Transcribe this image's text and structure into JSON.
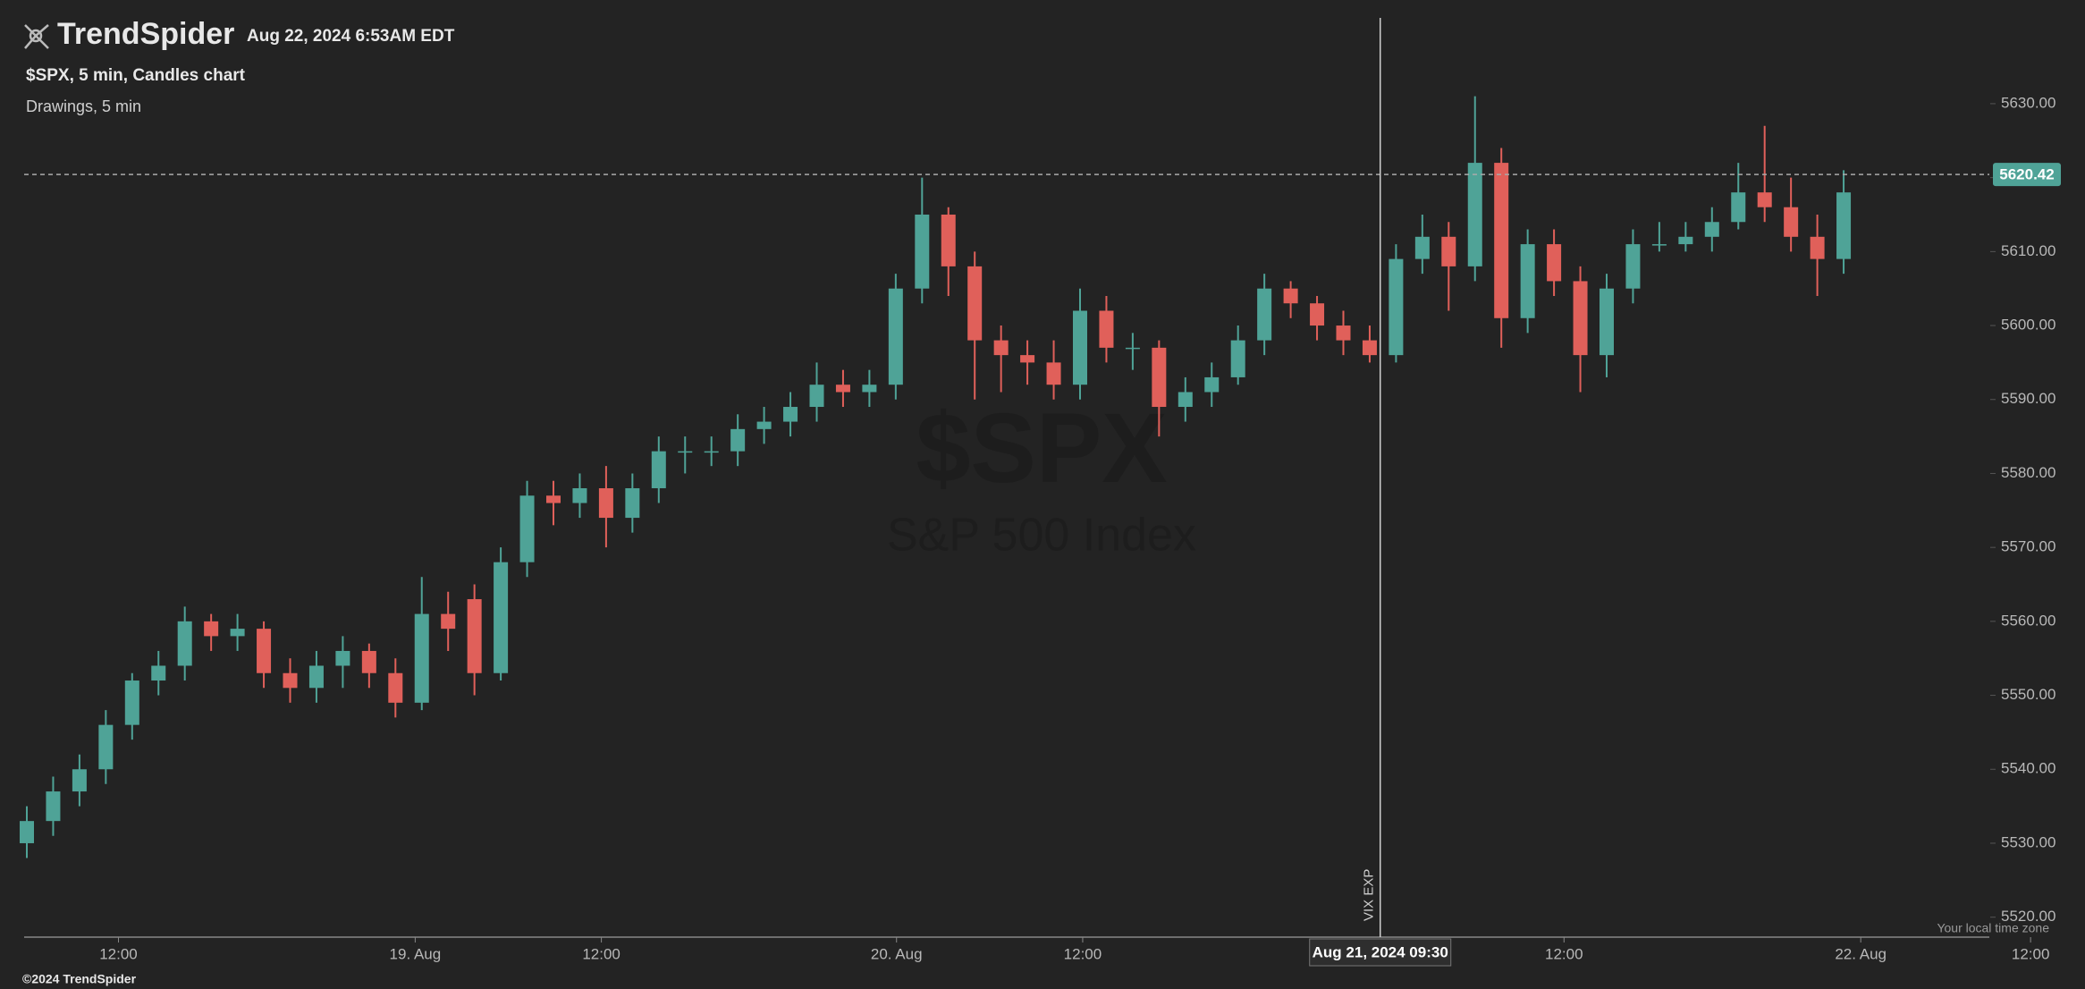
{
  "header": {
    "brand": "TrendSpider",
    "timestamp": "Aug 22, 2024 6:53AM EDT",
    "chart_label": "$SPX, 5 min, Candles chart",
    "drawings_label": "Drawings, 5 min"
  },
  "chart_data": {
    "type": "candlestick",
    "symbol": "$SPX",
    "subtitle": "S&P 500 Index",
    "up_color": "#4fa397",
    "down_color": "#e0605a",
    "categories": [
      null,
      null,
      null,
      null,
      null,
      null,
      null,
      null,
      null,
      null,
      null,
      null,
      null,
      null,
      null,
      null,
      null,
      null,
      null,
      null,
      null,
      null,
      null,
      null,
      null,
      null,
      null,
      null,
      null,
      null,
      null,
      null,
      null,
      null,
      null,
      null,
      null,
      null,
      null,
      null,
      null,
      null,
      null,
      null,
      null,
      null,
      null,
      null,
      null,
      null,
      null,
      null,
      null,
      null,
      null,
      null,
      null,
      null,
      null,
      null,
      null,
      null,
      null,
      null,
      null,
      null,
      null,
      null,
      null,
      null
    ],
    "open": [
      5530,
      5533,
      5537,
      5540,
      5546,
      5552,
      5554,
      5560,
      5558,
      5559,
      5553,
      5551,
      5554,
      5556,
      5553,
      5549,
      5561,
      5563,
      5553,
      5568,
      5577,
      5576,
      5578,
      5574,
      5578,
      5583,
      5583,
      5583,
      5586,
      5587,
      5589,
      5592,
      5591,
      5592,
      5605,
      5615,
      5608,
      5598,
      5596,
      5595,
      5592,
      5602,
      5597,
      5597,
      5589,
      5591,
      5593,
      5598,
      5605,
      5603,
      5600,
      5598,
      5596,
      5609,
      5612,
      5608,
      5622,
      5601,
      5611,
      5606,
      5596,
      5605,
      5611,
      5611,
      5612,
      5614,
      5618,
      5616,
      5612,
      5609
    ],
    "high": [
      5535,
      5539,
      5542,
      5548,
      5553,
      5556,
      5562,
      5561,
      5561,
      5560,
      5555,
      5556,
      5558,
      5557,
      5555,
      5566,
      5564,
      5565,
      5570,
      5579,
      5579,
      5580,
      5581,
      5580,
      5585,
      5585,
      5585,
      5588,
      5589,
      5591,
      5595,
      5594,
      5594,
      5607,
      5620,
      5616,
      5610,
      5600,
      5598,
      5598,
      5605,
      5604,
      5599,
      5598,
      5593,
      5595,
      5600,
      5607,
      5606,
      5604,
      5602,
      5600,
      5611,
      5615,
      5614,
      5631,
      5624,
      5613,
      5613,
      5608,
      5607,
      5613,
      5614,
      5614,
      5616,
      5622,
      5627,
      5620,
      5615,
      5621
    ],
    "low": [
      5528,
      5531,
      5535,
      5538,
      5544,
      5550,
      5552,
      5556,
      5556,
      5551,
      5549,
      5549,
      5551,
      5551,
      5547,
      5548,
      5556,
      5550,
      5552,
      5566,
      5573,
      5574,
      5570,
      5572,
      5576,
      5580,
      5581,
      5581,
      5584,
      5585,
      5587,
      5589,
      5589,
      5590,
      5603,
      5604,
      5590,
      5591,
      5592,
      5590,
      5590,
      5595,
      5594,
      5585,
      5587,
      5589,
      5592,
      5596,
      5601,
      5598,
      5596,
      5595,
      5595,
      5607,
      5602,
      5606,
      5597,
      5599,
      5604,
      5591,
      5593,
      5603,
      5610,
      5610,
      5610,
      5613,
      5614,
      5610,
      5604,
      5607
    ],
    "close": [
      5533,
      5537,
      5540,
      5546,
      5552,
      5554,
      5560,
      5558,
      5559,
      5553,
      5551,
      5554,
      5556,
      5553,
      5549,
      5561,
      5559,
      5553,
      5568,
      5577,
      5576,
      5578,
      5574,
      5578,
      5583,
      5583,
      5583,
      5586,
      5587,
      5589,
      5592,
      5591,
      5592,
      5605,
      5615,
      5608,
      5598,
      5596,
      5595,
      5592,
      5602,
      5597,
      5597,
      5589,
      5591,
      5593,
      5598,
      5605,
      5603,
      5600,
      5598,
      5596,
      5609,
      5612,
      5608,
      5622,
      5601,
      5611,
      5606,
      5596,
      5605,
      5611,
      5611,
      5612,
      5614,
      5618,
      5616,
      5612,
      5609,
      5618
    ],
    "ylim": [
      5517.3,
      5641.6
    ],
    "yticks": [
      {
        "value": 5520,
        "label": "5520.00"
      },
      {
        "value": 5530,
        "label": "5530.00"
      },
      {
        "value": 5540,
        "label": "5540.00"
      },
      {
        "value": 5550,
        "label": "5550.00"
      },
      {
        "value": 5560,
        "label": "5560.00"
      },
      {
        "value": 5570,
        "label": "5570.00"
      },
      {
        "value": 5580,
        "label": "5580.00"
      },
      {
        "value": 5590,
        "label": "5590.00"
      },
      {
        "value": 5600,
        "label": "5600.00"
      },
      {
        "value": 5610,
        "label": "5610.00"
      },
      {
        "value": 5620,
        "label": "5620.00"
      },
      {
        "value": 5630,
        "label": "5630.00"
      }
    ],
    "xticks": [
      {
        "value": 3.48,
        "label": "12:00"
      },
      {
        "value": 14.75,
        "label": "19. Aug"
      },
      {
        "value": 21.82,
        "label": "12:00"
      },
      {
        "value": 33.03,
        "label": "20. Aug"
      },
      {
        "value": 40.1,
        "label": "12:00"
      },
      {
        "value": 58.38,
        "label": "12:00"
      },
      {
        "value": 69.65,
        "label": "22. Aug"
      },
      {
        "value": 76.1,
        "label": "12:00"
      }
    ],
    "last_price": 5620.42,
    "crosshair": {
      "x": 51.4,
      "label": "Aug 21, 2024 09:30"
    },
    "annotation": "VIX EXP",
    "timezone_note": "Your local time zone"
  },
  "footer": {
    "copyright": "©2024 TrendSpider"
  }
}
